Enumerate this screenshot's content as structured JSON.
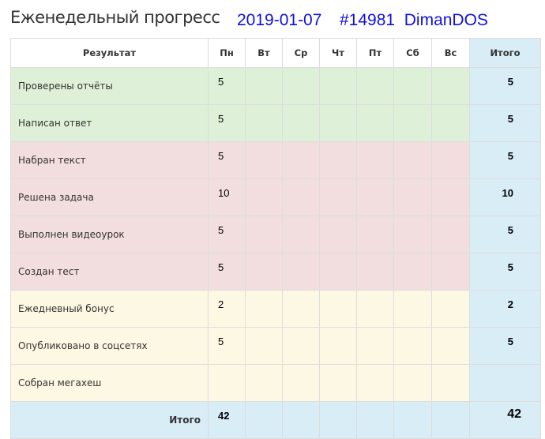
{
  "title": "Еженедельный прогресс",
  "date": "2019-01-07",
  "user": "#14981  DimanDOS",
  "colors": {
    "green": "#dff0d8",
    "red": "#f2dede",
    "yellow": "#fcf8e3",
    "blue": "#d9edf7",
    "link": "#1010e0"
  },
  "headers": [
    "Результат",
    "Пн",
    "Вт",
    "Ср",
    "Чт",
    "Пт",
    "Сб",
    "Вс",
    "Итого"
  ],
  "rows": [
    {
      "label": "Проверены отчёты",
      "days": [
        "5",
        "",
        "",
        "",
        "",
        "",
        ""
      ],
      "total": "5",
      "group": "g"
    },
    {
      "label": "Написан ответ",
      "days": [
        "5",
        "",
        "",
        "",
        "",
        "",
        ""
      ],
      "total": "5",
      "group": "g"
    },
    {
      "label": "Набран текст",
      "days": [
        "5",
        "",
        "",
        "",
        "",
        "",
        ""
      ],
      "total": "5",
      "group": "r"
    },
    {
      "label": "Решена задача",
      "days": [
        "10",
        "",
        "",
        "",
        "",
        "",
        ""
      ],
      "total": "10",
      "group": "r"
    },
    {
      "label": "Выполнен видеоурок",
      "days": [
        "5",
        "",
        "",
        "",
        "",
        "",
        ""
      ],
      "total": "5",
      "group": "r"
    },
    {
      "label": "Создан тест",
      "days": [
        "5",
        "",
        "",
        "",
        "",
        "",
        ""
      ],
      "total": "5",
      "group": "r"
    },
    {
      "label": "Ежедневный бонус",
      "days": [
        "2",
        "",
        "",
        "",
        "",
        "",
        ""
      ],
      "total": "2",
      "group": "y"
    },
    {
      "label": "Опубликовано в соцсетях",
      "days": [
        "5",
        "",
        "",
        "",
        "",
        "",
        ""
      ],
      "total": "5",
      "group": "y"
    },
    {
      "label": "Собран мегахеш",
      "days": [
        "",
        "",
        "",
        "",
        "",
        "",
        ""
      ],
      "total": "",
      "group": "y"
    }
  ],
  "footer": {
    "label": "Итого",
    "days": [
      "42",
      "",
      "",
      "",
      "",
      "",
      ""
    ],
    "total": "42"
  }
}
